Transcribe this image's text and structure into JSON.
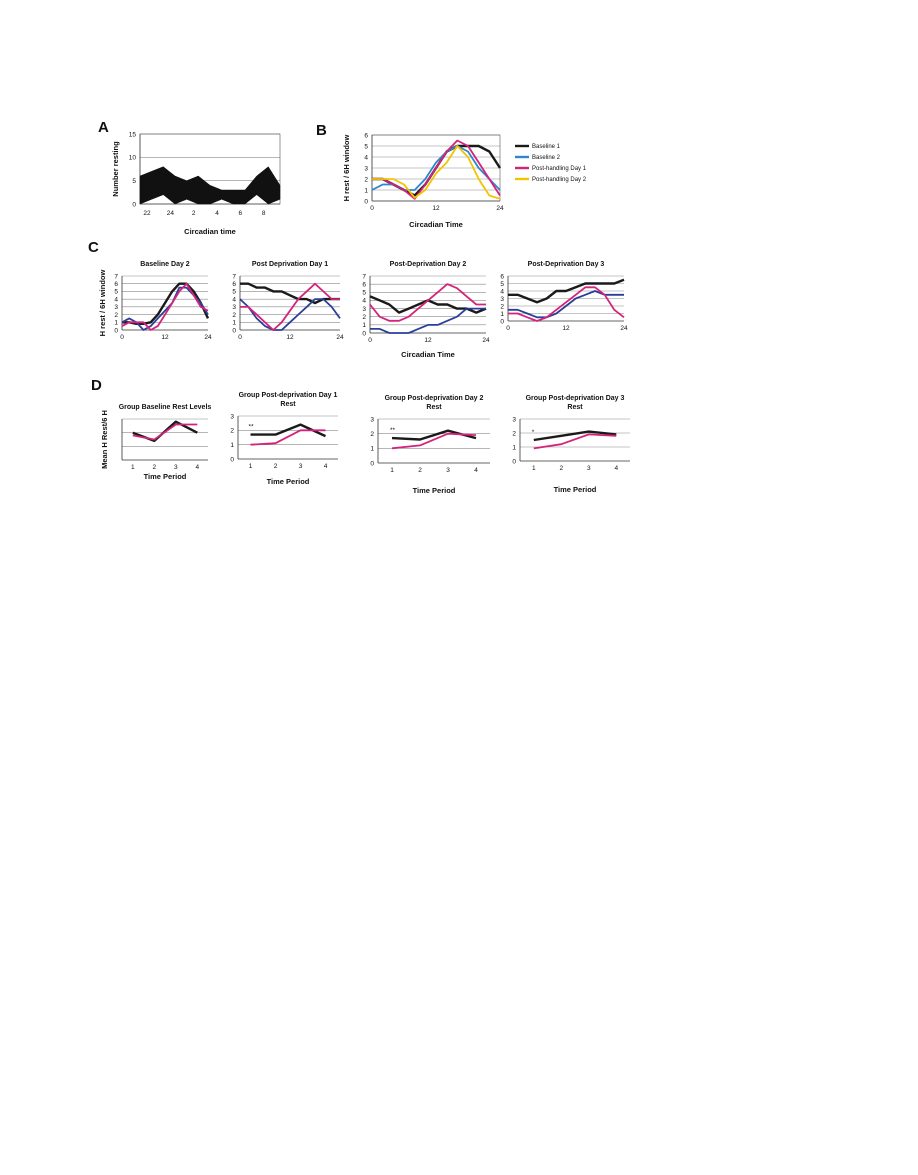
{
  "panels": {
    "A": "A",
    "B": "B",
    "C": "C",
    "D": "D"
  },
  "colors": {
    "black": "#1a1a1a",
    "blue": "#2a3f9a",
    "magenta": "#d4237a",
    "lightblue": "#2f86d0",
    "yellow": "#f2c400"
  },
  "chart_data": [
    {
      "id": "A",
      "type": "area",
      "ylabel": "Number resting",
      "xlabel": "Circadian time",
      "ylim": [
        0,
        15
      ],
      "yticks": [
        "0",
        "5",
        "10",
        "15"
      ],
      "xticks": [
        "22",
        "24",
        "2",
        "4",
        "6",
        "8"
      ],
      "x": [
        0,
        2,
        4,
        6,
        8,
        10,
        12,
        14,
        16,
        18,
        20,
        22,
        24
      ],
      "series": [
        {
          "upper": [
            6,
            7,
            8,
            6,
            5,
            6,
            4,
            3,
            3,
            3,
            6,
            8,
            4
          ],
          "lower": [
            0,
            1,
            2,
            0,
            1,
            0,
            0,
            1,
            0,
            0,
            2,
            0,
            1
          ]
        }
      ]
    },
    {
      "id": "B",
      "type": "line",
      "ylabel": "H rest / 6H window",
      "xlabel": "Circadian Time",
      "ylim": [
        0,
        6
      ],
      "yticks": [
        "0",
        "1",
        "2",
        "3",
        "4",
        "5",
        "6"
      ],
      "xticks": [
        "0",
        "12",
        "24"
      ],
      "xlim": [
        0,
        24
      ],
      "x": [
        0,
        2,
        4,
        6,
        8,
        10,
        12,
        14,
        16,
        18,
        20,
        22,
        24
      ],
      "legend": [
        "Baseline 1",
        "Baseline 2",
        "Post-handling Day 1",
        "Post-handling Day 2"
      ],
      "series": [
        {
          "color": "black",
          "values": [
            2,
            2,
            1.5,
            1,
            0.5,
            1.5,
            3,
            4.5,
            5,
            5,
            5,
            4.5,
            3
          ]
        },
        {
          "color": "lightblue",
          "values": [
            1,
            1.5,
            1.5,
            1,
            1,
            2,
            3.5,
            4.5,
            5,
            4.5,
            3,
            2,
            1
          ]
        },
        {
          "color": "magenta",
          "values": [
            2,
            2,
            1.5,
            1,
            0.2,
            1.5,
            3,
            4.5,
            5.5,
            5,
            3.5,
            2,
            0.5
          ]
        },
        {
          "color": "yellow",
          "values": [
            2,
            2,
            2,
            1.5,
            0.3,
            1,
            2.5,
            3.5,
            5,
            4,
            2,
            0.5,
            0.2
          ]
        }
      ]
    },
    {
      "id": "C1",
      "type": "line",
      "title": "Baseline Day 2",
      "ylabel": "H rest / 6H window",
      "xlabel": "",
      "ylim": [
        0,
        7
      ],
      "yticks": [
        "0",
        "1",
        "2",
        "3",
        "4",
        "5",
        "6",
        "7"
      ],
      "xticks": [
        "0",
        "12",
        "24"
      ],
      "x": [
        0,
        2,
        4,
        6,
        8,
        10,
        12,
        14,
        16,
        18,
        20,
        22,
        24
      ],
      "series": [
        {
          "color": "black",
          "values": [
            1,
            1,
            0.8,
            0.8,
            1,
            2,
            3.5,
            5,
            6,
            6,
            5,
            3.5,
            1.5
          ]
        },
        {
          "color": "blue",
          "values": [
            1,
            1.5,
            1,
            0,
            0.5,
            1.5,
            2.5,
            3.5,
            5.5,
            5.5,
            4.5,
            3.5,
            2
          ]
        },
        {
          "color": "magenta",
          "values": [
            0.5,
            1,
            1,
            1,
            0,
            0.5,
            2,
            3.5,
            5,
            6,
            4.5,
            3,
            2.5
          ]
        }
      ]
    },
    {
      "id": "C2",
      "type": "line",
      "title": "Post Deprivation Day 1",
      "xlabel": "",
      "ylim": [
        0,
        7
      ],
      "yticks": [
        "0",
        "1",
        "2",
        "3",
        "4",
        "5",
        "6",
        "7"
      ],
      "xticks": [
        "0",
        "12",
        "24"
      ],
      "x": [
        0,
        2,
        4,
        6,
        8,
        10,
        12,
        14,
        16,
        18,
        20,
        22,
        24
      ],
      "series": [
        {
          "color": "black",
          "values": [
            6,
            6,
            5.5,
            5.5,
            5,
            5,
            4.5,
            4,
            4,
            3.5,
            4,
            4,
            4
          ]
        },
        {
          "color": "blue",
          "values": [
            4,
            3,
            1.5,
            0.5,
            0,
            0,
            1,
            2,
            3,
            4,
            4,
            3,
            1.5
          ]
        },
        {
          "color": "magenta",
          "values": [
            3,
            3,
            2,
            1,
            0,
            1,
            2.5,
            4,
            5,
            6,
            5,
            4,
            4
          ]
        }
      ]
    },
    {
      "id": "C3",
      "type": "line",
      "title": "Post-Deprivation Day 2",
      "xlabel": "Circadian Time",
      "ylim": [
        0,
        7
      ],
      "yticks": [
        "0",
        "1",
        "2",
        "3",
        "4",
        "5",
        "6",
        "7"
      ],
      "xticks": [
        "0",
        "12",
        "24"
      ],
      "x": [
        0,
        2,
        4,
        6,
        8,
        10,
        12,
        14,
        16,
        18,
        20,
        22,
        24
      ],
      "series": [
        {
          "color": "black",
          "values": [
            4.5,
            4,
            3.5,
            2.5,
            3,
            3.5,
            4,
            3.5,
            3.5,
            3,
            3,
            2.5,
            3
          ]
        },
        {
          "color": "blue",
          "values": [
            0.5,
            0.5,
            0,
            0,
            0,
            0.5,
            1,
            1,
            1.5,
            2,
            3,
            3,
            3
          ]
        },
        {
          "color": "magenta",
          "values": [
            3.5,
            2,
            1.5,
            1.5,
            2,
            3,
            4,
            5,
            6,
            5.5,
            4.5,
            3.5,
            3.5
          ]
        }
      ]
    },
    {
      "id": "C4",
      "type": "line",
      "title": "Post-Deprivation Day 3",
      "xlabel": "",
      "ylim": [
        0,
        6
      ],
      "yticks": [
        "0",
        "1",
        "2",
        "3",
        "4",
        "5",
        "6"
      ],
      "xticks": [
        "0",
        "12",
        "24"
      ],
      "x": [
        0,
        2,
        4,
        6,
        8,
        10,
        12,
        14,
        16,
        18,
        20,
        22,
        24
      ],
      "series": [
        {
          "color": "black",
          "values": [
            3.5,
            3.5,
            3,
            2.5,
            3,
            4,
            4,
            4.5,
            5,
            5,
            5,
            5,
            5.5
          ]
        },
        {
          "color": "blue",
          "values": [
            1.5,
            1.5,
            1,
            0.5,
            0.5,
            1,
            2,
            3,
            3.5,
            4,
            3.5,
            3.5,
            3.5
          ]
        },
        {
          "color": "magenta",
          "values": [
            1,
            1,
            0.5,
            0,
            0.5,
            1.5,
            2.5,
            3.5,
            4.5,
            4.5,
            3.5,
            1.5,
            0.5
          ]
        }
      ]
    },
    {
      "id": "D1",
      "type": "line",
      "title": [
        "Group Baseline Rest Levels"
      ],
      "ylabel": "Mean H Rest/6 H",
      "xlabel": "Time Period",
      "ylim": [
        0,
        3
      ],
      "yticks": [],
      "xticks": [
        "1",
        "2",
        "3",
        "4"
      ],
      "x": [
        1,
        2,
        3,
        4
      ],
      "xlim": [
        0.5,
        4.5
      ],
      "marker": "",
      "series": [
        {
          "color": "black",
          "values": [
            2.0,
            1.4,
            2.8,
            2.0
          ]
        },
        {
          "color": "magenta",
          "values": [
            1.8,
            1.5,
            2.6,
            2.6
          ]
        }
      ]
    },
    {
      "id": "D2",
      "type": "line",
      "title": [
        "Group Post-deprivation Day 1",
        "Rest"
      ],
      "xlabel": "Time Period",
      "ylim": [
        0,
        3
      ],
      "yticks": [
        "0",
        "1",
        "2",
        "3"
      ],
      "xticks": [
        "1",
        "2",
        "3",
        "4"
      ],
      "x": [
        1,
        2,
        3,
        4
      ],
      "xlim": [
        0.5,
        4.5
      ],
      "marker": "**",
      "series": [
        {
          "color": "black",
          "values": [
            1.7,
            1.7,
            2.4,
            1.6
          ]
        },
        {
          "color": "magenta",
          "values": [
            1.0,
            1.1,
            2.0,
            2.0
          ]
        }
      ]
    },
    {
      "id": "D3",
      "type": "line",
      "title": [
        "Group Post-deprivation Day 2",
        "Rest"
      ],
      "xlabel": "Time Period",
      "ylim": [
        0,
        3
      ],
      "yticks": [
        "0",
        "1",
        "2",
        "3"
      ],
      "xticks": [
        "1",
        "2",
        "3",
        "4"
      ],
      "x": [
        1,
        2,
        3,
        4
      ],
      "xlim": [
        0.5,
        4.5
      ],
      "marker": "**",
      "series": [
        {
          "color": "black",
          "values": [
            1.7,
            1.6,
            2.2,
            1.7
          ]
        },
        {
          "color": "magenta",
          "values": [
            1.0,
            1.2,
            2.0,
            1.9
          ]
        }
      ]
    },
    {
      "id": "D4",
      "type": "line",
      "title": [
        "Group Post-deprivation Day 3",
        "Rest"
      ],
      "xlabel": "Time Period",
      "ylim": [
        0,
        3
      ],
      "yticks": [
        "0",
        "1",
        "2",
        "3"
      ],
      "xticks": [
        "1",
        "2",
        "3",
        "4"
      ],
      "x": [
        1,
        2,
        3,
        4
      ],
      "xlim": [
        0.5,
        4.5
      ],
      "marker": "*",
      "series": [
        {
          "color": "black",
          "values": [
            1.5,
            1.8,
            2.1,
            1.9
          ]
        },
        {
          "color": "magenta",
          "values": [
            0.9,
            1.2,
            1.9,
            1.8
          ]
        }
      ]
    }
  ]
}
